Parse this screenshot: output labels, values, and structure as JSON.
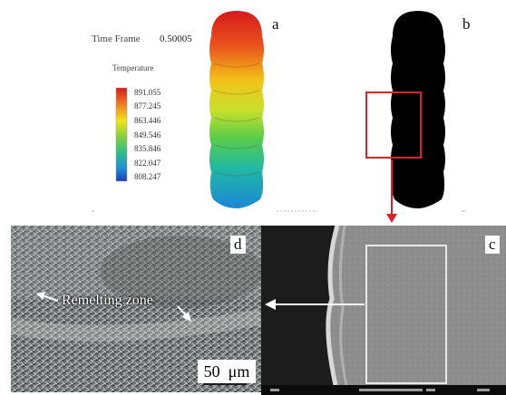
{
  "panel_a": {
    "letter": "a",
    "time_frame_label": "Time Frame",
    "time_frame_value": "0.50005",
    "legend_title": "Temperature",
    "legend_values": [
      "891.055",
      "877.245",
      "863.446",
      "849.546",
      "835.846",
      "822.047",
      "808.247"
    ],
    "colors": [
      "#d7191c",
      "#f08020",
      "#f4e21a",
      "#86d23a",
      "#2bbb8a",
      "#1e8fd6",
      "#1f3fb8"
    ]
  },
  "panel_b": {
    "letter": "b"
  },
  "panel_c": {
    "letter": "c"
  },
  "panel_d": {
    "letter": "d",
    "zone_label": "Remelting zone",
    "scale_bar": "50  μm"
  }
}
